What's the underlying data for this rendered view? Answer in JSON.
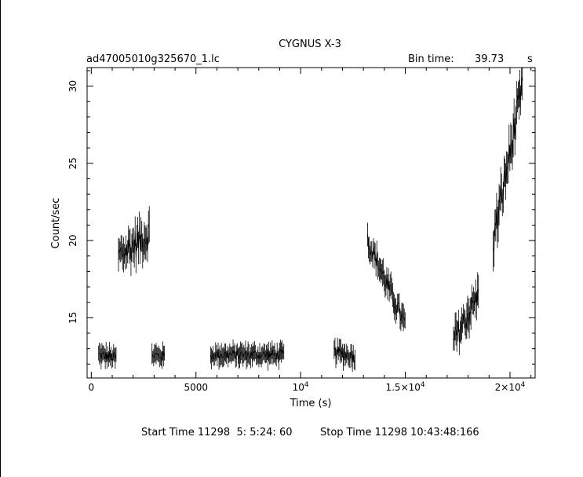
{
  "chart_data": {
    "type": "line",
    "title": "CYGNUS X-3",
    "file_label": "ad47005010g325670_1.lc",
    "bin_time_label": "Bin time:",
    "bin_time_value": "39.73",
    "bin_time_unit": "s",
    "xlabel": "Time (s)",
    "ylabel": "Count/sec",
    "xlim": [
      -200,
      21200
    ],
    "ylim": [
      11.1,
      31.2
    ],
    "x_ticks": [
      {
        "value": 0,
        "label": "0"
      },
      {
        "value": 5000,
        "label": "5000"
      },
      {
        "value": 10000,
        "label": "10",
        "exp": "4"
      },
      {
        "value": 15000,
        "label": "1.5×10",
        "exp": "4"
      },
      {
        "value": 20000,
        "label": "2×10",
        "exp": "4"
      }
    ],
    "y_ticks": [
      {
        "value": 15,
        "label": "15"
      },
      {
        "value": 20,
        "label": "20"
      },
      {
        "value": 25,
        "label": "25"
      },
      {
        "value": 30,
        "label": "30"
      }
    ],
    "grid": false,
    "series": [
      {
        "segments": [
          {
            "x_start": 350,
            "x_end": 1200,
            "y_start": 12.6,
            "y_end": 12.4,
            "scatter": 0.35,
            "err": 0.55
          },
          {
            "x_start": 1300,
            "x_end": 2800,
            "y_start": 19.0,
            "y_end": 20.5,
            "scatter": 1.0,
            "err": 0.9
          },
          {
            "x_start": 2900,
            "x_end": 3500,
            "y_start": 12.6,
            "y_end": 12.5,
            "scatter": 0.35,
            "err": 0.55
          },
          {
            "x_start": 5700,
            "x_end": 9200,
            "y_start": 12.6,
            "y_end": 12.6,
            "scatter": 0.35,
            "err": 0.55
          },
          {
            "x_start": 11600,
            "x_end": 12600,
            "y_start": 12.8,
            "y_end": 12.5,
            "scatter": 0.4,
            "err": 0.6
          },
          {
            "x_start": 13200,
            "x_end": 15000,
            "y_start": 20.0,
            "y_end": 14.5,
            "scatter": 0.6,
            "err": 0.7
          },
          {
            "x_start": 17300,
            "x_end": 18500,
            "y_start": 13.5,
            "y_end": 16.5,
            "scatter": 0.8,
            "err": 0.9
          },
          {
            "x_start": 19200,
            "x_end": 20600,
            "y_start": 20.0,
            "y_end": 30.0,
            "scatter": 1.0,
            "err": 1.1
          }
        ]
      }
    ]
  },
  "footer": {
    "start_label": "Start Time 11298  5: 5:24: 60",
    "stop_label": "Stop Time 11298 10:43:48:166"
  }
}
